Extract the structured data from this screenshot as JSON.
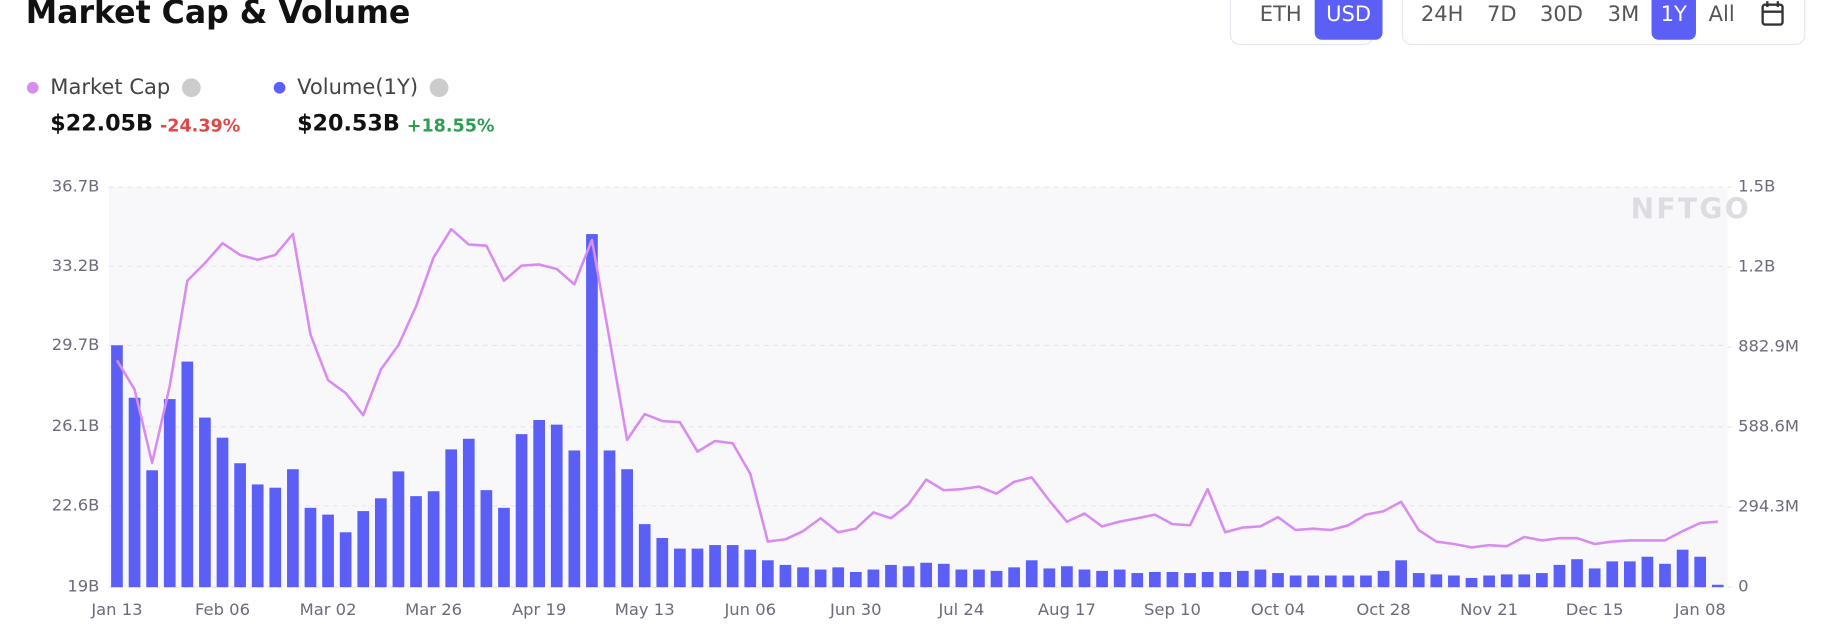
{
  "controls": {
    "currencies": [
      "ETH",
      "USD"
    ],
    "currency_selected": 1,
    "ranges": [
      "24H",
      "7D",
      "30D",
      "3M",
      "1Y",
      "All"
    ],
    "range_selected": 4
  },
  "chart_data": {
    "type": "bar-line",
    "title": "Market Cap & Volume",
    "watermark": "NFTGO",
    "categories": [
      "Jan 13",
      null,
      null,
      null,
      null,
      null,
      "Feb 06",
      null,
      null,
      null,
      null,
      null,
      "Mar 02",
      null,
      null,
      null,
      null,
      null,
      "Mar 26",
      null,
      null,
      null,
      null,
      null,
      "Apr 19",
      null,
      null,
      null,
      null,
      null,
      "May 13",
      null,
      null,
      null,
      null,
      null,
      "Jun 06",
      null,
      null,
      null,
      null,
      null,
      "Jun 30",
      null,
      null,
      null,
      null,
      null,
      "Jul 24",
      null,
      null,
      null,
      null,
      null,
      "Aug 17",
      null,
      null,
      null,
      null,
      null,
      "Sep 10",
      null,
      null,
      null,
      null,
      null,
      "Oct 04",
      null,
      null,
      null,
      null,
      null,
      "Oct 28",
      null,
      null,
      null,
      null,
      null,
      "Nov 21",
      null,
      null,
      null,
      null,
      null,
      "Dec 15",
      null,
      null,
      null,
      null,
      null,
      "Jan 08",
      null
    ],
    "series": [
      {
        "name": "Market Cap",
        "color": "#d88cf0",
        "type": "line",
        "axis": "y",
        "summary": "$22.05B",
        "change": "-24.39%",
        "change_color": "#e04848",
        "values": [
          29.04,
          27.75,
          24.5,
          27.9,
          32.56,
          33.34,
          34.22,
          33.7,
          33.49,
          33.7,
          34.63,
          30.18,
          28.16,
          27.59,
          26.61,
          28.63,
          29.71,
          31.42,
          33.59,
          34.84,
          34.16,
          34.11,
          32.56,
          33.23,
          33.28,
          33.08,
          32.4,
          34.37,
          29.97,
          25.52,
          26.66,
          26.35,
          26.3,
          25.0,
          25.47,
          25.37,
          24.02,
          21.02,
          21.12,
          21.48,
          22.05,
          21.43,
          21.59,
          22.31,
          22.05,
          22.67,
          23.76,
          23.29,
          23.34,
          23.45,
          23.14,
          23.66,
          23.86,
          22.83,
          21.9,
          22.26,
          21.69,
          21.9,
          22.05,
          22.21,
          21.79,
          21.74,
          23.34,
          21.43,
          21.64,
          21.69,
          22.1,
          21.53,
          21.59,
          21.53,
          21.74,
          22.21,
          22.36,
          22.78,
          21.53,
          21.02,
          20.91,
          20.76,
          20.86,
          20.81,
          21.22,
          21.07,
          21.17,
          21.17,
          20.91,
          21.02,
          21.07,
          21.07,
          21.07,
          21.48,
          21.84,
          21.9
        ]
      },
      {
        "name": "Volume(1Y)",
        "color": "#5b5ff5",
        "type": "bar",
        "axis": "y2",
        "summary": "$20.53B",
        "change": "+18.55%",
        "change_color": "#2e9e52",
        "values": [
          890,
          697,
          430,
          692,
          830,
          624,
          550,
          456,
          378,
          366,
          434,
          292,
          267,
          202,
          280,
          327,
          426,
          335,
          353,
          507,
          546,
          357,
          292,
          563,
          615,
          598,
          503,
          1299,
          503,
          434,
          232,
          181,
          142,
          142,
          155,
          155,
          138,
          99,
          82,
          73,
          65,
          73,
          56,
          65,
          82,
          77,
          90,
          86,
          65,
          65,
          60,
          73,
          99,
          69,
          77,
          65,
          60,
          65,
          52,
          56,
          56,
          52,
          56,
          56,
          60,
          65,
          52,
          43,
          43,
          43,
          43,
          43,
          60,
          99,
          52,
          47,
          43,
          34,
          43,
          47,
          47,
          52,
          82,
          103,
          69,
          95,
          95,
          112,
          86,
          138,
          112,
          9
        ]
      }
    ],
    "ylim": [
      19,
      36.7
    ],
    "yticks": [
      {
        "value": 19,
        "label": "19B"
      },
      {
        "value": 22.6,
        "label": "22.6B"
      },
      {
        "value": 26.1,
        "label": "26.1B"
      },
      {
        "value": 29.7,
        "label": "29.7B"
      },
      {
        "value": 33.2,
        "label": "33.2B"
      },
      {
        "value": 36.7,
        "label": "36.7B"
      }
    ],
    "y2lim": [
      0,
      1471.5
    ],
    "y2ticks": [
      0,
      {
        "value": 294.3,
        "label": "294.3M"
      },
      {
        "value": 588.6,
        "label": "588.6M"
      },
      {
        "value": 882.9,
        "label": "882.9M"
      },
      {
        "value": 1177.2,
        "label": "1.2B"
      },
      {
        "value": 1471.5,
        "label": "1.5B"
      }
    ],
    "grid": true
  }
}
